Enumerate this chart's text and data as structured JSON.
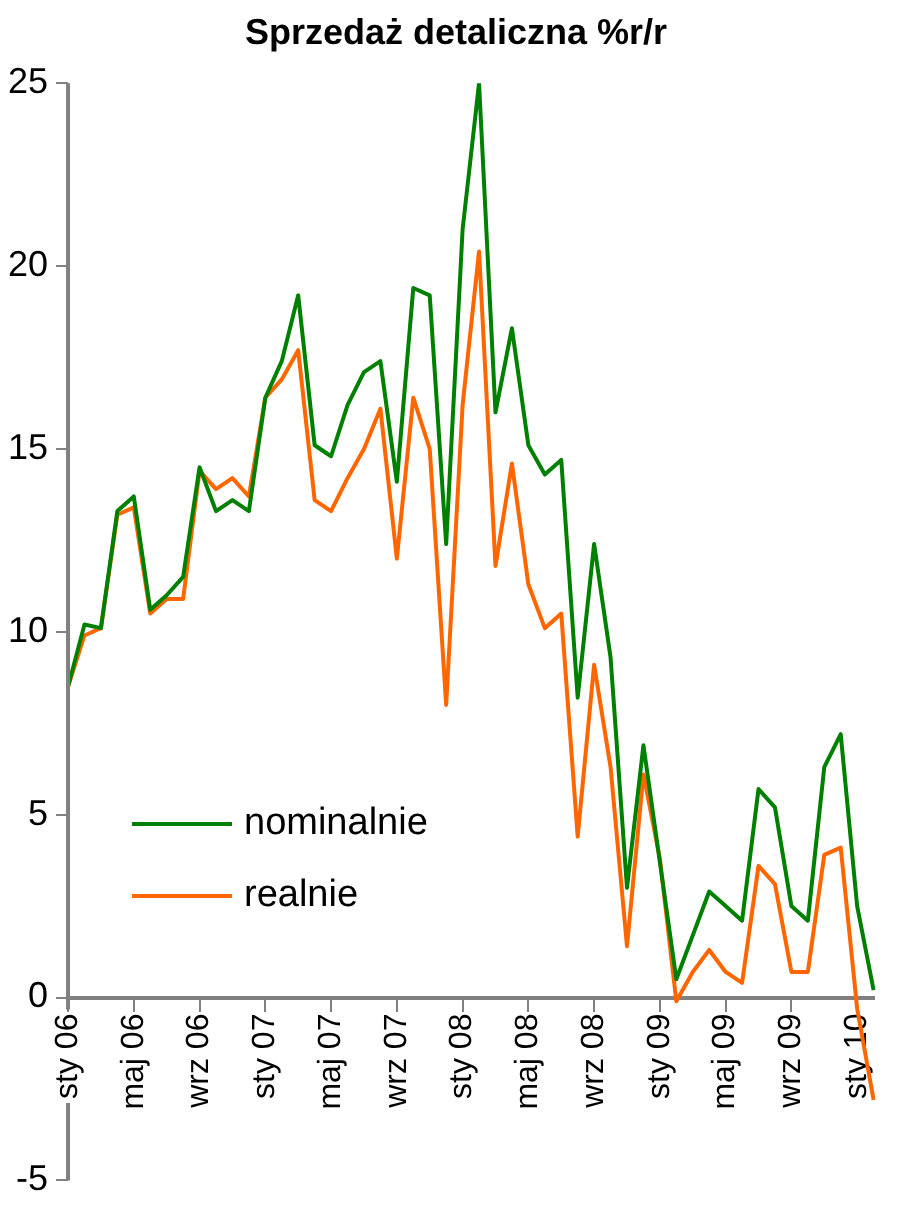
{
  "chart_data": {
    "type": "line",
    "title": "Sprzedaż detaliczna %r/r",
    "categories": [
      "sty 06",
      null,
      null,
      null,
      "maj 06",
      null,
      null,
      null,
      "wrz 06",
      null,
      null,
      null,
      "sty 07",
      null,
      null,
      null,
      "maj 07",
      null,
      null,
      null,
      "wrz 07",
      null,
      null,
      null,
      "sty 08",
      null,
      null,
      null,
      "maj 08",
      null,
      null,
      null,
      "wrz 08",
      null,
      null,
      null,
      "sty 09",
      null,
      null,
      null,
      "maj 09",
      null,
      null,
      null,
      "wrz 09",
      null,
      null,
      null,
      "sty 10",
      null
    ],
    "series": [
      {
        "name": "nominalnie",
        "color": "#008000",
        "values": [
          8.5,
          10.2,
          10.1,
          13.3,
          13.7,
          10.6,
          11.0,
          11.5,
          14.5,
          13.3,
          13.6,
          13.3,
          16.4,
          17.4,
          19.2,
          15.1,
          14.8,
          16.2,
          17.1,
          17.4,
          14.1,
          19.4,
          19.2,
          12.4,
          21.0,
          25.0,
          16.0,
          18.3,
          15.1,
          14.3,
          14.7,
          8.2,
          12.4,
          9.3,
          3.0,
          6.9,
          3.7,
          0.5,
          1.7,
          2.9,
          2.5,
          2.1,
          5.7,
          5.2,
          2.5,
          2.1,
          6.3,
          7.2,
          2.5,
          0.2
        ]
      },
      {
        "name": "realnie",
        "color": "#ff6600",
        "values": [
          8.5,
          9.9,
          10.1,
          13.2,
          13.4,
          10.5,
          10.9,
          10.9,
          14.4,
          13.9,
          14.2,
          13.7,
          16.4,
          16.9,
          17.7,
          13.6,
          13.3,
          14.2,
          15.0,
          16.1,
          12.0,
          16.4,
          15.0,
          8.0,
          16.2,
          20.4,
          11.8,
          14.6,
          11.3,
          10.1,
          10.5,
          4.4,
          9.1,
          6.3,
          1.4,
          6.1,
          3.8,
          -0.1,
          0.7,
          1.3,
          0.7,
          0.4,
          3.6,
          3.1,
          0.7,
          0.7,
          3.9,
          4.1,
          -0.3,
          -2.8
        ]
      }
    ],
    "ylim": [
      -5,
      25
    ],
    "yticks": [
      -5,
      0,
      5,
      10,
      15,
      20,
      25
    ],
    "grid": false,
    "legend": "bottom left",
    "marker": "none",
    "line_style": "solid"
  }
}
